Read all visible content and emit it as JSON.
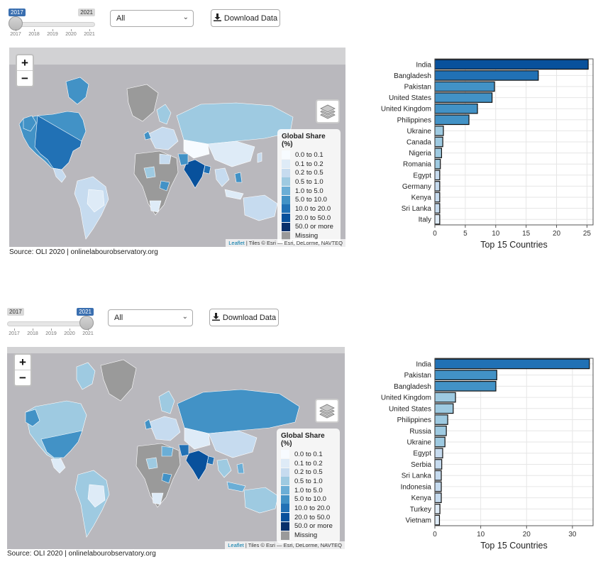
{
  "panels": [
    {
      "slider": {
        "min_label": "2017",
        "max_label": "2021",
        "value": 2017,
        "tick_labels": [
          "2017",
          "2018",
          "2019",
          "2020",
          "2021"
        ]
      },
      "select": {
        "value": "All"
      },
      "download": {
        "label": "Download Data"
      },
      "map": {
        "zoom_in": "+",
        "zoom_out": "−",
        "legend_title": "Global Share (%)",
        "attribution_leaflet": "Leaflet",
        "attribution_rest": "| Tiles © Esri — Esri, DeLorme, NAVTEQ"
      },
      "source": "Source: OLI 2020 | onlinelabourobservatory.org"
    },
    {
      "slider": {
        "min_label": "2017",
        "max_label": "2021",
        "value": 2021,
        "tick_labels": [
          "2017",
          "2018",
          "2019",
          "2020",
          "2021"
        ]
      },
      "select": {
        "value": "All"
      },
      "download": {
        "label": "Download Data"
      },
      "map": {
        "zoom_in": "+",
        "zoom_out": "−",
        "legend_title": "Global Share (%)",
        "attribution_leaflet": "Leaflet",
        "attribution_rest": "| Tiles © Esri — Esri, DeLorme, NAVTEQ"
      },
      "source": "Source: OLI 2020 | onlinelabourobservatory.org"
    }
  ],
  "legend_items": [
    {
      "label": "0.0 to 0.1",
      "color": "#f7fbff"
    },
    {
      "label": "0.1 to 0.2",
      "color": "#deebf7"
    },
    {
      "label": "0.2 to 0.5",
      "color": "#c6dbef"
    },
    {
      "label": "0.5 to 1.0",
      "color": "#9ecae1"
    },
    {
      "label": "1.0 to 5.0",
      "color": "#6baed6"
    },
    {
      "label": "5.0 to 10.0",
      "color": "#4292c6"
    },
    {
      "label": "10.0 to 20.0",
      "color": "#2171b5"
    },
    {
      "label": "20.0 to 50.0",
      "color": "#08519c"
    },
    {
      "label": "50.0 or more",
      "color": "#08306b"
    },
    {
      "label": "Missing",
      "color": "#9a9a9a"
    }
  ],
  "chart_data": [
    {
      "type": "bar",
      "orientation": "horizontal",
      "xlabel": "Top 15 Countries",
      "xlim": [
        0,
        26
      ],
      "xticks": [
        0,
        5,
        10,
        15,
        20,
        25
      ],
      "categories": [
        "India",
        "Bangladesh",
        "Pakistan",
        "United States",
        "United Kingdom",
        "Philippines",
        "Ukraine",
        "Canada",
        "Nigeria",
        "Romania",
        "Egypt",
        "Germany",
        "Kenya",
        "Sri Lanka",
        "Italy"
      ],
      "values": [
        25.2,
        17.0,
        9.8,
        9.4,
        7.0,
        5.6,
        1.4,
        1.3,
        1.1,
        0.9,
        0.8,
        0.8,
        0.8,
        0.8,
        0.8
      ],
      "colors": [
        "#08519c",
        "#2171b5",
        "#4292c6",
        "#4292c6",
        "#4292c6",
        "#4292c6",
        "#9ecae1",
        "#9ecae1",
        "#9ecae1",
        "#9ecae1",
        "#c6dbef",
        "#c6dbef",
        "#c6dbef",
        "#c6dbef",
        "#deebf7"
      ]
    },
    {
      "type": "bar",
      "orientation": "horizontal",
      "xlabel": "Top 15 Countries",
      "xlim": [
        0,
        34.5
      ],
      "xticks": [
        0,
        10,
        20,
        30
      ],
      "categories": [
        "India",
        "Pakistan",
        "Bangladesh",
        "United Kingdom",
        "United States",
        "Philippines",
        "Russia",
        "Ukraine",
        "Egypt",
        "Serbia",
        "Sri Lanka",
        "Indonesia",
        "Kenya",
        "Turkey",
        "Vietnam"
      ],
      "values": [
        33.7,
        13.5,
        13.3,
        4.5,
        4.0,
        2.8,
        2.5,
        2.2,
        1.7,
        1.5,
        1.4,
        1.4,
        1.4,
        1.1,
        1.0
      ],
      "colors": [
        "#2171b5",
        "#4292c6",
        "#4292c6",
        "#9ecae1",
        "#9ecae1",
        "#9ecae1",
        "#9ecae1",
        "#9ecae1",
        "#c6dbef",
        "#c6dbef",
        "#c6dbef",
        "#c6dbef",
        "#c6dbef",
        "#deebf7",
        "#deebf7"
      ]
    }
  ]
}
